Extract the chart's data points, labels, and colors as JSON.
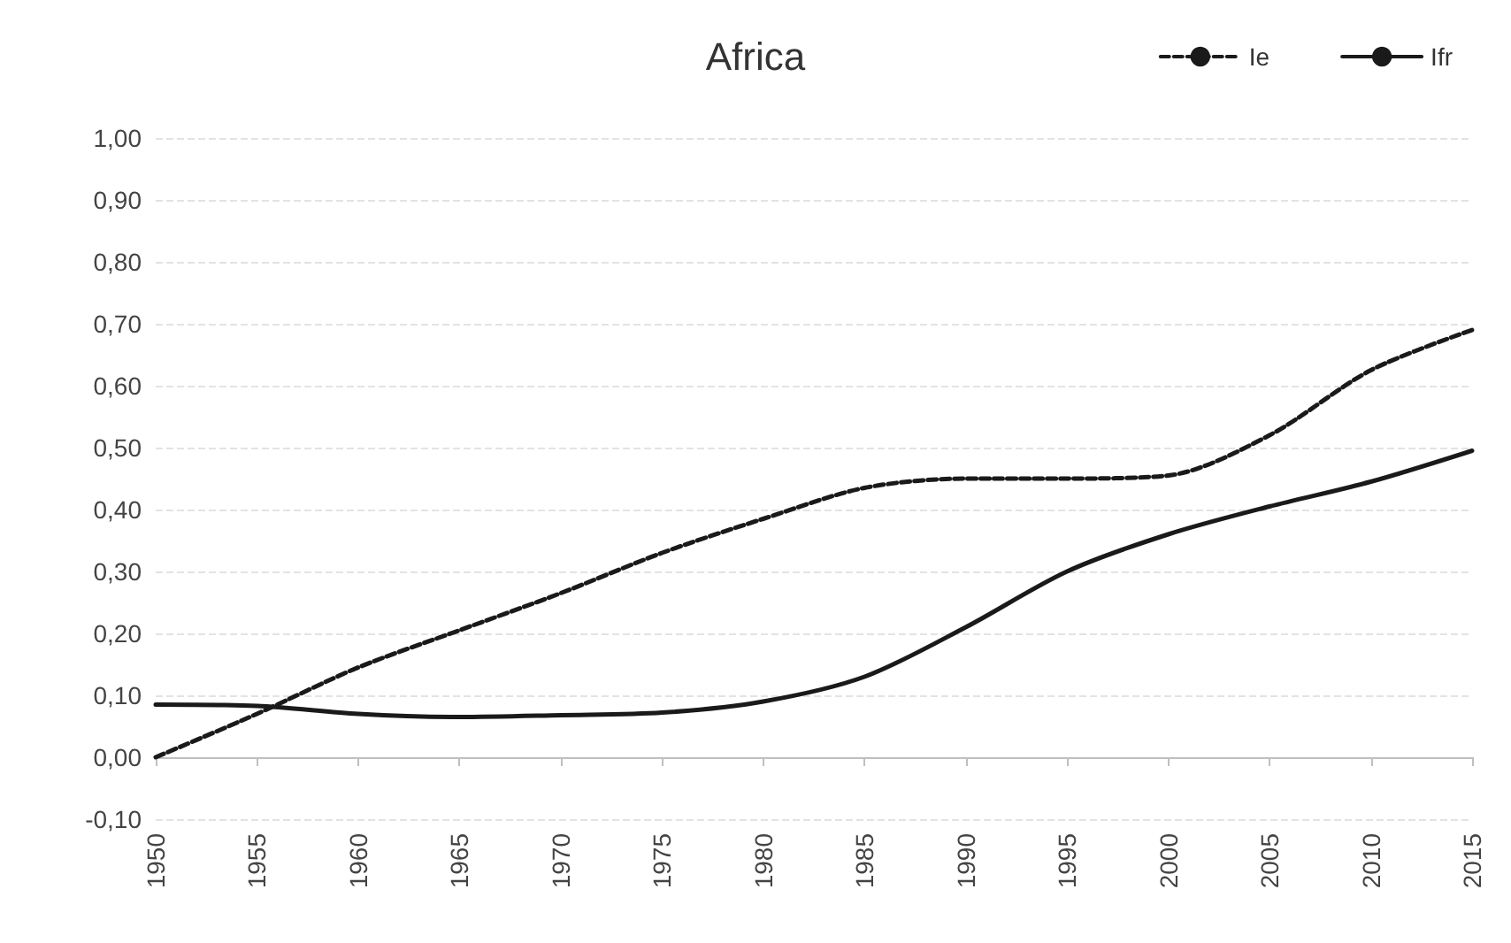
{
  "chart_data": {
    "type": "line",
    "title": "Africa",
    "x": [
      1950,
      1955,
      1960,
      1965,
      1970,
      1975,
      1980,
      1985,
      1990,
      1995,
      2000,
      2005,
      2010,
      2015
    ],
    "series": [
      {
        "name": "Ie",
        "color": "#1a1a1a",
        "line_style": "dashed",
        "values": [
          0.0,
          0.07,
          0.145,
          0.205,
          0.265,
          0.33,
          0.385,
          0.435,
          0.45,
          0.45,
          0.455,
          0.52,
          0.625,
          0.69
        ]
      },
      {
        "name": "Ifr",
        "color": "#1a1a1a",
        "line_style": "solid",
        "values": [
          0.085,
          0.083,
          0.07,
          0.065,
          0.068,
          0.072,
          0.09,
          0.13,
          0.21,
          0.3,
          0.36,
          0.405,
          0.445,
          0.495
        ]
      }
    ],
    "xlim": [
      1950,
      2015
    ],
    "xticks": [
      1950,
      1955,
      1960,
      1965,
      1970,
      1975,
      1980,
      1985,
      1990,
      1995,
      2000,
      2005,
      2010,
      2015
    ],
    "ylim": [
      -0.1,
      1.0
    ],
    "yticks": [
      {
        "value": -0.1,
        "label": "-0,10"
      },
      {
        "value": 0,
        "label": "0,00"
      },
      {
        "value": 0.1,
        "label": "0,10"
      },
      {
        "value": 0.2,
        "label": "0,20"
      },
      {
        "value": 0.3,
        "label": "0,30"
      },
      {
        "value": 0.4,
        "label": "0,40"
      },
      {
        "value": 0.5,
        "label": "0,50"
      },
      {
        "value": 0.6,
        "label": "0,60"
      },
      {
        "value": 0.7,
        "label": "0,70"
      },
      {
        "value": 0.8,
        "label": "0,80"
      },
      {
        "value": 0.9,
        "label": "0,90"
      },
      {
        "value": 1.0,
        "label": "1,00"
      }
    ],
    "grid": "y",
    "legend": "top right",
    "marker": "none"
  }
}
